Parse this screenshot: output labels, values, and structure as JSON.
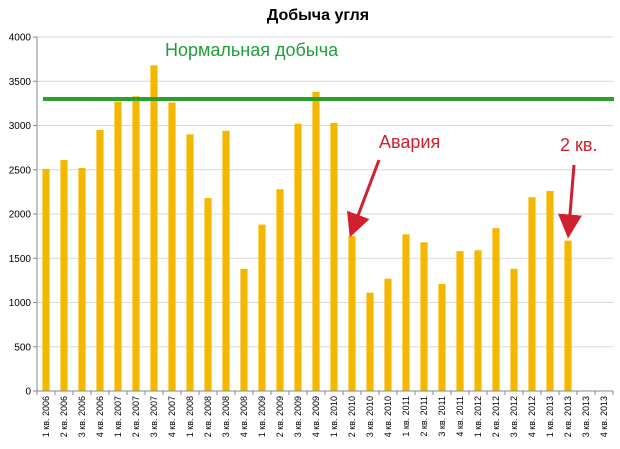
{
  "chart_data": {
    "type": "bar",
    "title": "Добыча угля",
    "xlabel": "",
    "ylabel": "",
    "ylim": [
      0,
      4000
    ],
    "yticks": [
      0,
      500,
      1000,
      1500,
      2000,
      2500,
      3000,
      3500,
      4000
    ],
    "grid": true,
    "bar_color": "#f5b800",
    "categories": [
      "1 кв. 2006",
      "2 кв. 2006",
      "3 кв. 2006",
      "4 кв. 2006",
      "1 кв. 2007",
      "2 кв. 2007",
      "3 кв. 2007",
      "4 кв. 2007",
      "1 кв. 2008",
      "2 кв. 2008",
      "3 кв. 2008",
      "4 кв. 2008",
      "1 кв. 2009",
      "2 кв. 2009",
      "3 кв. 2009",
      "4 кв. 2009",
      "1 кв. 2010",
      "2 кв. 2010",
      "3 кв. 2010",
      "4 кв. 2010",
      "1 кв. 2011",
      "2 кв. 2011",
      "3 кв. 2011",
      "4 кв. 2011",
      "1 кв. 2012",
      "2 кв. 2012",
      "3 кв. 2012",
      "4 кв. 2012",
      "1 кв. 2013",
      "2 кв. 2013",
      "3 кв. 2013",
      "4 кв. 2013"
    ],
    "values": [
      2510,
      2610,
      2520,
      2950,
      3270,
      3330,
      3680,
      3260,
      2900,
      2180,
      2940,
      1380,
      1880,
      2280,
      3020,
      3380,
      3030,
      1750,
      1110,
      1270,
      1770,
      1680,
      1210,
      1580,
      1590,
      1840,
      1380,
      2190,
      2260,
      1700,
      null,
      null
    ],
    "reference_line": {
      "label": "Нормальная добыча",
      "value": 3300,
      "color": "#2ca02c"
    },
    "annotations": [
      {
        "text": "Авария",
        "target_category": "2 кв. 2010",
        "color": "#d0202e"
      },
      {
        "text": "2 кв.",
        "target_category": "2 кв. 2013",
        "color": "#d0202e"
      }
    ]
  }
}
